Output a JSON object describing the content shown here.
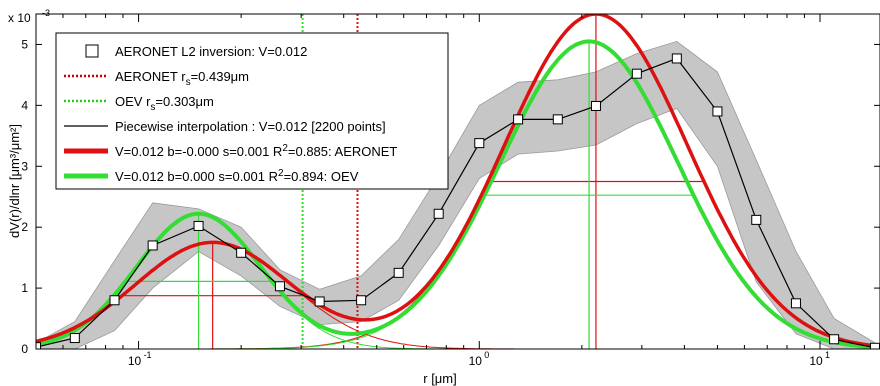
{
  "chart_data": {
    "type": "line",
    "x_scale": "log",
    "xlim": [
      0.05,
      15
    ],
    "ylim": [
      0,
      5.5
    ],
    "y_multiplier_label": "x 10",
    "y_multiplier_exp": "-3",
    "xlabel": "r [μm]",
    "ylabel": "dV(r)/dlnr [μm³/μm²]",
    "xticks": [
      {
        "value": 0.1,
        "base": "10",
        "exp": "-1"
      },
      {
        "value": 1,
        "base": "10",
        "exp": "0"
      },
      {
        "value": 10,
        "base": "10",
        "exp": "1"
      }
    ],
    "yticks": [
      "0",
      "1",
      "2",
      "3",
      "4",
      "5"
    ],
    "grid": false,
    "legend_position": "top-left",
    "legend": [
      {
        "label": "AERONET L2 inversion: V=0.012",
        "style": "square-marker",
        "color": "#000000"
      },
      {
        "label_pre": "AERONET r",
        "label_sub": "s",
        "label_post": "=0.439μm",
        "style": "dotted",
        "color": "#c00000"
      },
      {
        "label_pre": "OEV r",
        "label_sub": "s",
        "label_post": "=0.303μm",
        "style": "dotted",
        "color": "#22cc22"
      },
      {
        "label": "Piecewise interpolation : V=0.012 [2200 points]",
        "style": "thin",
        "color": "#000000"
      },
      {
        "label_pre": "V=0.012 b=-0.000 s=0.001 R",
        "label_sup": "2",
        "label_post": "=0.885: AERONET",
        "style": "thick",
        "color": "#dd1111"
      },
      {
        "label_pre": "V=0.012 b=0.000 s=0.001 R",
        "label_sup": "2",
        "label_post": "=0.894: OEV",
        "style": "thick",
        "color": "#33dd33"
      }
    ],
    "aeronet_points": {
      "x": [
        0.05,
        0.065,
        0.085,
        0.11,
        0.15,
        0.2,
        0.26,
        0.34,
        0.45,
        0.58,
        0.76,
        1.0,
        1.3,
        1.7,
        2.2,
        2.9,
        3.8,
        5.0,
        6.5,
        8.5,
        11.0,
        14.5
      ],
      "y": [
        0.03,
        0.18,
        0.8,
        1.7,
        2.02,
        1.58,
        1.03,
        0.78,
        0.8,
        1.25,
        2.22,
        3.38,
        3.77,
        3.77,
        3.99,
        4.52,
        4.77,
        3.9,
        2.12,
        0.75,
        0.16,
        0.02
      ]
    },
    "uncertainty_band": {
      "x": [
        0.05,
        0.065,
        0.085,
        0.11,
        0.15,
        0.2,
        0.26,
        0.34,
        0.45,
        0.58,
        0.76,
        1.0,
        1.3,
        1.7,
        2.2,
        2.9,
        3.8,
        5.0,
        6.5,
        8.5,
        11.0,
        14.5
      ],
      "upper": [
        0.1,
        0.45,
        1.45,
        2.4,
        2.3,
        2.0,
        1.3,
        0.98,
        1.2,
        1.8,
        2.85,
        4.0,
        4.38,
        4.42,
        4.55,
        4.85,
        5.05,
        4.55,
        3.1,
        1.6,
        0.5,
        0.1
      ],
      "lower": [
        0.0,
        0.0,
        0.3,
        1.0,
        1.6,
        1.2,
        0.7,
        0.4,
        0.45,
        0.8,
        1.7,
        2.8,
        3.2,
        3.25,
        3.35,
        3.7,
        3.95,
        3.0,
        1.1,
        0.25,
        0.0,
        0.0
      ]
    },
    "aeronet_fit": {
      "color": "#dd1111",
      "fine": {
        "peak": 1.75,
        "r_mode": 0.165,
        "sigma": 0.52
      },
      "coarse": {
        "peak": 5.5,
        "r_mode": 2.2,
        "sigma": 0.62
      },
      "r_s": 0.439
    },
    "oev_fit": {
      "color": "#33dd33",
      "fine": {
        "peak": 2.22,
        "r_mode": 0.15,
        "sigma": 0.42
      },
      "coarse": {
        "peak": 5.05,
        "r_mode": 2.1,
        "sigma": 0.6
      },
      "r_s": 0.303
    }
  }
}
